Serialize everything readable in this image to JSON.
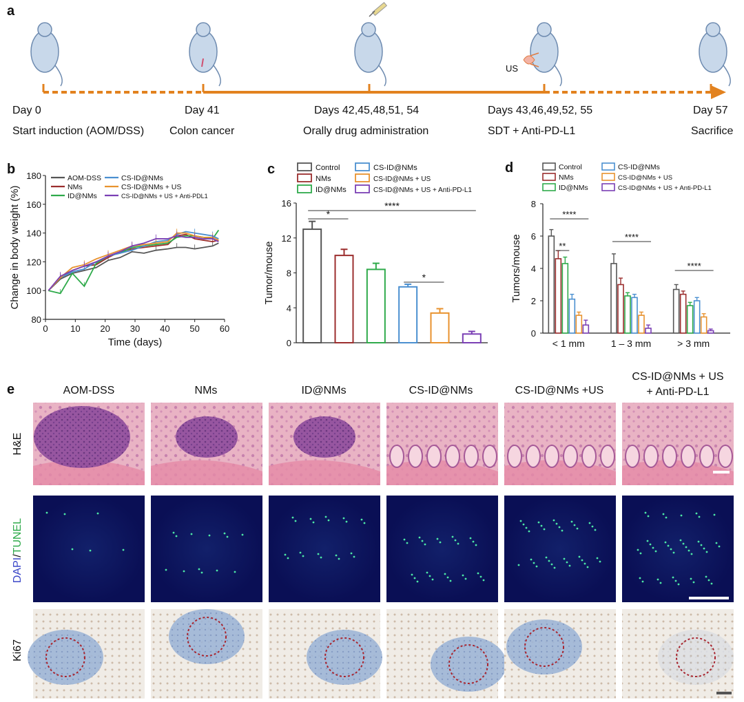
{
  "panel_letters": {
    "a": "a",
    "b": "b",
    "c": "c",
    "d": "d",
    "e": "e"
  },
  "timeline": {
    "days": [
      "Day 0",
      "Day 41",
      "Days 42,45,48,51, 54",
      "Days 43,46,49,52, 55",
      "Day 57"
    ],
    "events": [
      "Start induction (AOM/DSS)",
      "Colon cancer",
      "Orally drug administration",
      "SDT + Anti-PD-L1",
      "Sacrifice"
    ],
    "us_label": "US"
  },
  "colors": {
    "orange": "#e2821f",
    "groups": [
      "#555555",
      "#9b2d2d",
      "#2eaa4a",
      "#4a8fd0",
      "#e8922e",
      "#7a3fb4"
    ]
  },
  "chart_data": [
    {
      "panel": "b",
      "type": "line",
      "xlabel": "Time (days)",
      "ylabel": "Change in body weight (%)",
      "xlim": [
        0,
        60
      ],
      "ylim": [
        80,
        180
      ],
      "xticks": [
        0,
        10,
        20,
        30,
        40,
        50,
        60
      ],
      "yticks": [
        80,
        100,
        120,
        140,
        160,
        180
      ],
      "legend_position": "top-left",
      "x": [
        1,
        5,
        9,
        13,
        17,
        21,
        25,
        29,
        33,
        37,
        41,
        44,
        47,
        50,
        53,
        56,
        58
      ],
      "series": [
        {
          "name": "AOM-DSS",
          "values": [
            100,
            108,
            112,
            114,
            116,
            121,
            123,
            127,
            126,
            128,
            129,
            130,
            130,
            129,
            130,
            131,
            133
          ]
        },
        {
          "name": "NMs",
          "values": [
            100,
            109,
            114,
            117,
            118,
            123,
            127,
            129,
            130,
            131,
            132,
            138,
            139,
            136,
            135,
            134,
            135
          ]
        },
        {
          "name": "ID@NMs",
          "values": [
            100,
            98,
            112,
            103,
            119,
            124,
            126,
            130,
            131,
            132,
            133,
            137,
            138,
            138,
            137,
            136,
            142
          ]
        },
        {
          "name": "CS-ID@NMs",
          "values": [
            100,
            109,
            113,
            115,
            120,
            124,
            126,
            128,
            131,
            134,
            135,
            139,
            141,
            140,
            139,
            138,
            136
          ]
        },
        {
          "name": "CS-ID@NMs  + US",
          "values": [
            100,
            109,
            116,
            118,
            122,
            125,
            128,
            131,
            132,
            133,
            134,
            140,
            140,
            138,
            137,
            137,
            135
          ]
        },
        {
          "name": "CS-ID@NMs + US + Anti-PDL1",
          "values": [
            100,
            110,
            114,
            117,
            120,
            124,
            127,
            131,
            133,
            136,
            136,
            138,
            137,
            137,
            136,
            136,
            134
          ]
        }
      ]
    },
    {
      "panel": "c",
      "type": "bar",
      "ylabel": "Tumor/mouse",
      "ylim": [
        0,
        16
      ],
      "yticks": [
        0,
        4,
        8,
        12,
        16
      ],
      "categories": [
        "Control",
        "NMs",
        "ID@NMs",
        "CS-ID@NMs",
        "CS-ID@NMs  + US",
        "CS-ID@NMs  + US + Anti-PD-L1"
      ],
      "values": [
        13.0,
        10.0,
        8.4,
        6.4,
        3.4,
        1.0
      ],
      "errors": [
        0.9,
        0.7,
        0.7,
        0.3,
        0.5,
        0.3
      ],
      "significance": [
        {
          "from": 0,
          "to": 1,
          "label": "*"
        },
        {
          "from": 0,
          "to": 5,
          "label": "****"
        },
        {
          "from": 3,
          "to": 4,
          "label": "*"
        }
      ]
    },
    {
      "panel": "d",
      "type": "bar",
      "ylabel": "Tumors/mouse",
      "ylim": [
        0,
        8
      ],
      "yticks": [
        0,
        2,
        4,
        6,
        8
      ],
      "categories": [
        "< 1 mm",
        "1 – 3 mm",
        "> 3 mm"
      ],
      "series": [
        {
          "name": "Control",
          "values": [
            6.0,
            4.3,
            2.7
          ],
          "errors": [
            0.4,
            0.6,
            0.3
          ]
        },
        {
          "name": "NMs",
          "values": [
            4.6,
            3.0,
            2.4
          ],
          "errors": [
            0.5,
            0.4,
            0.2
          ]
        },
        {
          "name": "ID@NMs",
          "values": [
            4.3,
            2.3,
            1.7
          ],
          "errors": [
            0.4,
            0.2,
            0.2
          ]
        },
        {
          "name": "CS-ID@NMs",
          "values": [
            2.1,
            2.2,
            2.0
          ],
          "errors": [
            0.3,
            0.2,
            0.2
          ]
        },
        {
          "name": "CS-ID@NMs  + US",
          "values": [
            1.1,
            1.1,
            1.0
          ],
          "errors": [
            0.2,
            0.2,
            0.2
          ]
        },
        {
          "name": "CS-ID@NMs  + US + Anti-PD-L1",
          "values": [
            0.5,
            0.3,
            0.15
          ],
          "errors": [
            0.3,
            0.2,
            0.1
          ]
        }
      ],
      "significance": [
        {
          "group": 0,
          "label": "****"
        },
        {
          "group": 0,
          "label": "**"
        },
        {
          "group": 1,
          "label": "****"
        },
        {
          "group": 2,
          "label": "****"
        }
      ]
    }
  ],
  "histology": {
    "columns": [
      "AOM-DSS",
      "NMs",
      "ID@NMs",
      "CS-ID@NMs",
      "CS-ID@NMs +US"
    ],
    "last_column": [
      "CS-ID@NMs + US",
      "+ Anti-PD-L1"
    ],
    "rows": [
      "H&E",
      "Ki67"
    ],
    "tunel_row": {
      "dapi": "DAPI",
      "slash": "/",
      "tunel": "TUNEL"
    }
  }
}
